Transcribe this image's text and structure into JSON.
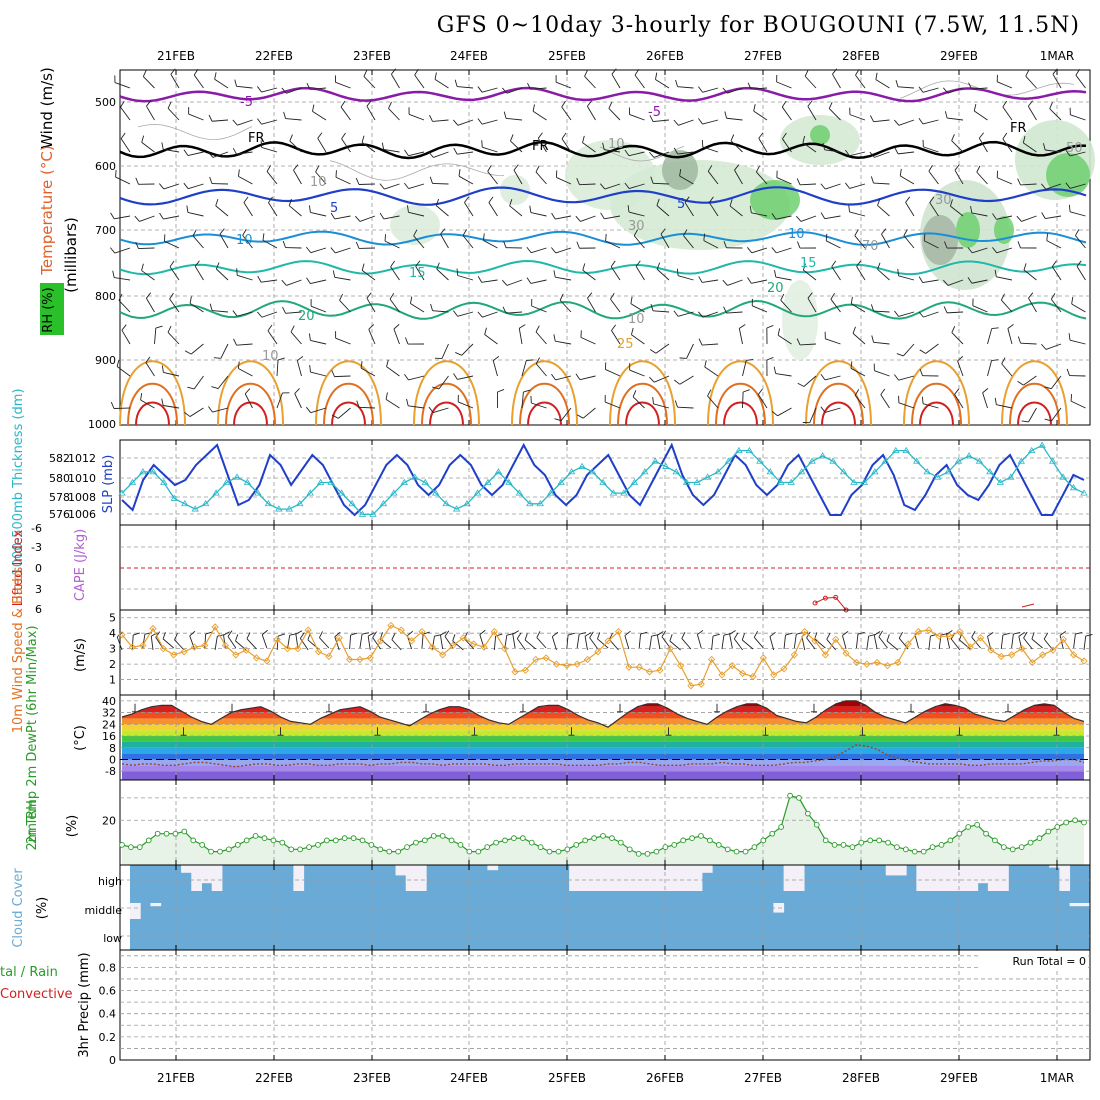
{
  "title": "GFS 0~10day 3-hourly for BOUGOUNI (7.5W, 11.5N)",
  "dates": [
    "21FEB",
    "22FEB",
    "23FEB",
    "24FEB",
    "25FEB",
    "26FEB",
    "27FEB",
    "28FEB",
    "29FEB",
    "1MAR"
  ],
  "colors": {
    "grid": "#9a9a9a",
    "blue_line": "#1f3fc8",
    "cyan_line": "#2ab7c8",
    "orange": "#e8a030",
    "green": "#2a9a2a",
    "cloud": "#6aaad6",
    "red": "#d02020",
    "purple": "#8a1aa8"
  },
  "panels": {
    "upper": {
      "ylabel_parts": [
        "Wind (m/s)",
        "Temperature (°C)",
        "RH (%)"
      ],
      "axis_label": "(millibars)",
      "ticks": [
        "500",
        "600",
        "700",
        "800",
        "900",
        "1000"
      ],
      "contour_labels": [
        "-5",
        "-5",
        "FR",
        "FR",
        "FR",
        "5",
        "5",
        "10",
        "10",
        "15",
        "15",
        "20",
        "20",
        "25",
        "10",
        "10",
        "10",
        "30",
        "30",
        "50",
        "70",
        "10"
      ]
    },
    "slp": {
      "ylabel": "1000-500mb Thickness (dm)",
      "ylabel2": "SLP (mb)",
      "ticks_left": [
        "582",
        "580",
        "578",
        "576"
      ],
      "ticks_right": [
        "1012",
        "1010",
        "1008",
        "1006"
      ]
    },
    "cape": {
      "ylabel": "Lifted Index",
      "ylabel2": "CAPE (J/kg)",
      "ticks": [
        "-6",
        "-3",
        "0",
        "3",
        "6"
      ]
    },
    "wind": {
      "ylabel": "10m Wind Speed & Barbs",
      "ylabel2": "(m/s)",
      "ticks": [
        "5",
        "4",
        "3",
        "2",
        "1"
      ]
    },
    "temp": {
      "ylabel": "2m Temp 2m DewPt (6hr Min/Max)",
      "ylabel2": "(°C)",
      "ticks": [
        "40",
        "32",
        "24",
        "16",
        "8",
        "0",
        "-8"
      ]
    },
    "rh": {
      "ylabel": "2m RH",
      "ylabel2": "(%)",
      "ticks": [
        "20"
      ]
    },
    "cloud": {
      "ylabel": "Cloud Cover",
      "ylabel2": "(%)",
      "levels": [
        "high",
        "middle",
        "low"
      ]
    },
    "precip": {
      "ylabel": "tal / Rain",
      "ylabel_conv": "Convective",
      "ylabel2": "3hr Precip (mm)",
      "ticks": [
        "0.8",
        "0.6",
        "0.4",
        "0.2",
        "0"
      ],
      "run_total": "Run Total = 0"
    }
  },
  "chart_data": [
    {
      "type": "line",
      "name": "thickness_slp",
      "series": [
        {
          "name": "SLP (mb)",
          "values": [
            1007.5,
            1006.5,
            1009.5,
            1011,
            1010,
            1009,
            1009.5,
            1011,
            1012,
            1013,
            1010,
            1007,
            1007.5,
            1009,
            1012,
            1011,
            1009,
            1010.5,
            1012,
            1011,
            1009,
            1007,
            1006,
            1007,
            1009,
            1011,
            1012,
            1011,
            1009,
            1008,
            1009,
            1011,
            1012,
            1011,
            1009,
            1008,
            1009,
            1011,
            1013,
            1011,
            1010,
            1008,
            1007,
            1008,
            1010,
            1011,
            1012,
            1010,
            1008,
            1007,
            1009,
            1011,
            1013,
            1010,
            1008,
            1007,
            1008,
            1010,
            1012,
            1011,
            1009,
            1008,
            1009,
            1011,
            1012,
            1010,
            1008,
            1006,
            1006,
            1008,
            1009,
            1011,
            1012,
            1010,
            1007,
            1006.5,
            1008,
            1010,
            1011,
            1009,
            1008,
            1007.5,
            1009,
            1011,
            1012,
            1010,
            1008,
            1006,
            1006,
            1008,
            1010,
            1009.5
          ]
        },
        {
          "name": "1000-500mb Thickness (dm)",
          "values": [
            578,
            579,
            580,
            580,
            579,
            577.5,
            577,
            576.5,
            577,
            578,
            579,
            579.5,
            579,
            578,
            577,
            576.5,
            576.5,
            577,
            578,
            579,
            579,
            578,
            577,
            576,
            576,
            577,
            578,
            579,
            579.5,
            579,
            578,
            577,
            576.5,
            577,
            578,
            579,
            580,
            579,
            578,
            577,
            577,
            578,
            579,
            580,
            580.5,
            580,
            579,
            578,
            578,
            579,
            580,
            581,
            580.5,
            580,
            579,
            579,
            579.5,
            580,
            581,
            582,
            582,
            581,
            580,
            579,
            579,
            580,
            581,
            581.5,
            581,
            580,
            579,
            579,
            580,
            581,
            582,
            582,
            581,
            580,
            579.5,
            580,
            581,
            581.5,
            581,
            580,
            579,
            579.5,
            581,
            582,
            582.5,
            581,
            579.5,
            578.5,
            578
          ]
        }
      ],
      "ylim_left": [
        575,
        583
      ],
      "ylim_right": [
        1005,
        1013.5
      ]
    },
    {
      "type": "line",
      "name": "lifted_index",
      "series": [
        {
          "name": "Lifted Index",
          "values": [
            null,
            null,
            null,
            null,
            null,
            null,
            null,
            null,
            null,
            null,
            null,
            null,
            null,
            null,
            null,
            null,
            null,
            null,
            null,
            null,
            null,
            null,
            null,
            null,
            null,
            null,
            null,
            null,
            null,
            null,
            null,
            null,
            null,
            null,
            null,
            null,
            null,
            null,
            null,
            null,
            null,
            null,
            null,
            null,
            null,
            null,
            null,
            null,
            null,
            null,
            null,
            null,
            null,
            null,
            null,
            null,
            null,
            null,
            null,
            null,
            null,
            null,
            null,
            null,
            null,
            null,
            null,
            5,
            4.3,
            4.2,
            6,
            null,
            null,
            null,
            null,
            null,
            null,
            null,
            null,
            null,
            null,
            null,
            null,
            null,
            null,
            null,
            null,
            null,
            null,
            null,
            null,
            null,
            null,
            null
          ]
        }
      ],
      "ylim": [
        -6,
        6
      ]
    },
    {
      "type": "line",
      "name": "wind_speed",
      "series": [
        {
          "name": "10m Wind Speed",
          "values": [
            3.9,
            3.1,
            3.2,
            4.3,
            3.0,
            2.6,
            2.8,
            3.1,
            3.2,
            4.4,
            3.2,
            2.6,
            2.9,
            2.4,
            2.2,
            3.6,
            3.0,
            3.0,
            4.2,
            2.8,
            2.5,
            3.7,
            2.3,
            2.3,
            2.4,
            3.5,
            4.5,
            4.2,
            3.5,
            4.1,
            3.1,
            2.6,
            3.2,
            3.7,
            3.3,
            3.1,
            4.1,
            3.0,
            1.5,
            1.6,
            2.3,
            2.4,
            2.0,
            1.9,
            2.0,
            2.3,
            2.8,
            3.5,
            4.1,
            1.8,
            1.8,
            1.5,
            1.6,
            3.0,
            1.9,
            0.6,
            0.7,
            2.3,
            1.3,
            1.9,
            1.4,
            1.2,
            2.4,
            1.3,
            1.7,
            2.6,
            4.1,
            3.5,
            2.6,
            3.6,
            2.7,
            2.1,
            2.0,
            2.1,
            1.9,
            2.1,
            3.3,
            4.1,
            4.2,
            3.8,
            3.8,
            4.1,
            3.1,
            3.7,
            2.9,
            2.5,
            2.6,
            3.0,
            2.1,
            2.6,
            2.9,
            3.6,
            2.6,
            2.2
          ]
        }
      ],
      "ylim": [
        0,
        5.5
      ]
    },
    {
      "type": "area",
      "name": "temperature",
      "series": [
        {
          "name": "2m Temp",
          "values": [
            29,
            31,
            34,
            36,
            37,
            37,
            33,
            29,
            26,
            24,
            28,
            32,
            34,
            35,
            36,
            33,
            29,
            26,
            25,
            24,
            28,
            31,
            34,
            35,
            36,
            33,
            29,
            27,
            25,
            23,
            27,
            31,
            34,
            36,
            36,
            34,
            30,
            27,
            25,
            24,
            28,
            32,
            36,
            37,
            37,
            34,
            30,
            27,
            25,
            22,
            27,
            32,
            36,
            38,
            38,
            35,
            31,
            28,
            26,
            24,
            29,
            33,
            36,
            38,
            38,
            35,
            30,
            28,
            26,
            25,
            29,
            34,
            38,
            40,
            40,
            37,
            32,
            29,
            27,
            25,
            29,
            33,
            36,
            38,
            37,
            35,
            31,
            29,
            27,
            26,
            30,
            34,
            37,
            38,
            37,
            32,
            28,
            26
          ]
        },
        {
          "name": "2m DewPt",
          "values": [
            -3,
            -4,
            -3,
            -3,
            -4,
            -4,
            -3,
            -2,
            -2,
            -3,
            -4,
            -5,
            -4,
            -3,
            -3,
            -4,
            -4,
            -3,
            -3,
            -4,
            -4,
            -3,
            -3,
            -3,
            -4,
            -3,
            -3,
            -2,
            -2,
            -3,
            -3,
            -4,
            -3,
            -3,
            -3,
            -3,
            -4,
            -4,
            -3,
            -3,
            -3,
            -3,
            -3,
            -4,
            -4,
            -4,
            -4,
            -3,
            -3,
            -2,
            -2,
            -3,
            -4,
            -4,
            -4,
            -3,
            -3,
            -3,
            -2,
            -3,
            -3,
            -4,
            -4,
            -4,
            -3,
            -2,
            -2,
            -1,
            0,
            2,
            6,
            10,
            9,
            7,
            3,
            1,
            -1,
            -2,
            -3,
            -3,
            -3,
            -3,
            -4,
            -4,
            -3,
            -3,
            -3,
            -3,
            -2,
            -1,
            -1,
            0,
            0,
            -2
          ]
        }
      ],
      "ylim": [
        -14,
        44
      ]
    },
    {
      "type": "area",
      "name": "relative_humidity",
      "series": [
        {
          "name": "2m RH",
          "values": [
            9,
            8,
            8,
            11,
            14,
            14,
            14,
            15,
            11,
            9,
            6,
            6,
            7,
            9,
            11,
            13,
            12,
            11,
            10,
            7,
            7,
            8,
            9,
            11,
            11,
            12,
            12,
            11,
            9,
            7,
            6,
            6,
            8,
            10,
            11,
            13,
            13,
            11,
            9,
            6,
            6,
            8,
            10,
            11,
            12,
            12,
            10,
            8,
            6,
            6,
            7,
            9,
            11,
            12,
            13,
            12,
            10,
            7,
            5,
            5,
            6,
            8,
            9,
            11,
            12,
            13,
            11,
            9,
            7,
            6,
            6,
            8,
            11,
            14,
            17,
            31,
            30,
            23,
            18,
            11,
            9,
            9,
            8,
            10,
            11,
            11,
            10,
            8,
            7,
            6,
            6,
            8,
            9,
            11,
            14,
            17,
            18,
            14,
            11,
            8,
            7,
            8,
            10,
            12,
            15,
            17,
            19,
            20,
            19
          ]
        }
      ],
      "ylim": [
        0,
        38
      ]
    },
    {
      "type": "bar",
      "name": "cloud_cover",
      "series": [
        {
          "name": "high",
          "values": [
            100,
            100,
            100,
            100,
            100,
            70,
            0,
            30,
            0,
            100,
            100,
            100,
            100,
            100,
            100,
            100,
            0,
            100,
            100,
            100,
            100,
            100,
            100,
            100,
            100,
            100,
            60,
            0,
            0,
            100,
            100,
            100,
            100,
            100,
            100,
            80,
            100,
            100,
            100,
            100,
            100,
            100,
            100,
            0,
            0,
            0,
            0,
            0,
            0,
            0,
            0,
            0,
            0,
            0,
            0,
            0,
            70,
            100,
            100,
            100,
            100,
            100,
            100,
            100,
            0,
            0,
            100,
            100,
            100,
            100,
            100,
            100,
            100,
            100,
            60,
            60,
            100,
            0,
            0,
            0,
            0,
            0,
            0,
            30,
            0,
            0,
            100,
            100,
            100,
            100,
            90,
            0,
            100,
            100
          ]
        },
        {
          "name": "middle",
          "values": [
            0,
            100,
            80,
            100,
            100,
            100,
            100,
            100,
            100,
            100,
            100,
            100,
            100,
            100,
            100,
            100,
            100,
            100,
            100,
            100,
            100,
            100,
            100,
            100,
            100,
            100,
            100,
            100,
            100,
            100,
            100,
            100,
            100,
            100,
            100,
            100,
            100,
            100,
            100,
            100,
            100,
            100,
            100,
            100,
            100,
            100,
            100,
            100,
            100,
            100,
            100,
            100,
            100,
            100,
            100,
            100,
            100,
            100,
            100,
            100,
            100,
            100,
            100,
            40,
            100,
            100,
            100,
            100,
            100,
            100,
            100,
            100,
            100,
            100,
            100,
            100,
            100,
            100,
            100,
            100,
            100,
            100,
            100,
            100,
            100,
            100,
            100,
            100,
            100,
            100,
            100,
            100,
            80,
            80
          ]
        },
        {
          "name": "low",
          "values": []
        }
      ],
      "ylim": [
        0,
        100
      ]
    },
    {
      "type": "bar",
      "name": "precip",
      "series": [
        {
          "name": "3hr Precip (mm)",
          "values": []
        }
      ],
      "ylim": [
        0,
        0.95
      ]
    }
  ]
}
